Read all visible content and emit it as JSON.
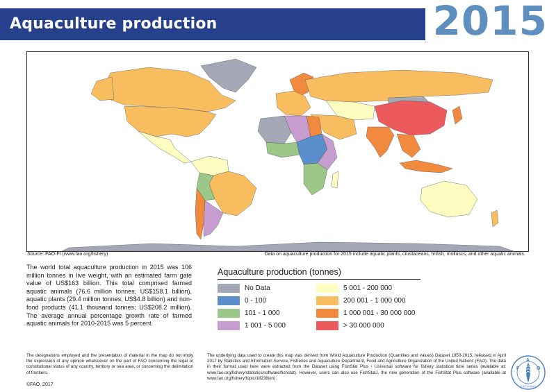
{
  "header": {
    "title": "Aquaculture production",
    "year": "2015"
  },
  "map": {
    "source_label": "Source:",
    "source_text": "FAO-FI (www.fao.org/fishery)",
    "note": "Data on aquaculture production for 2015 include aquatic plants, crustaceans, finfish, molluscs, and other aquatic animals."
  },
  "summary": "The world total aquaculture production in 2015 was 106 million tonnes in live weight, with an estimated farm gate value of US$163 billion. This total comprised farmed aquatic animals (76.6 million tonnes, US$158.1 billion), aquatic plants (29.4 million tonnes; US$4.8 billion) and non-food products (41.1 thousand tonnes; US$208.2 million). The average annual percentage growth rate of farmed aquatic animals for 2010-2015 was 5 percent.",
  "legend": {
    "title": "Aquaculture production (tonnes)",
    "items": [
      {
        "label": "No Data",
        "color": "#a3a7b6"
      },
      {
        "label": "5 001 - 200 000",
        "color": "#fdfcc1"
      },
      {
        "label": "0 - 100",
        "color": "#5a8fcc"
      },
      {
        "label": "200 001 - 1 000 000",
        "color": "#f8bd5f"
      },
      {
        "label": "101 - 1 000",
        "color": "#9bc888"
      },
      {
        "label": "1 000 001 - 30 000 000",
        "color": "#f1893e"
      },
      {
        "label": "1 001 - 5 000",
        "color": "#c79dd0"
      },
      {
        "label": "> 30 000 000",
        "color": "#ec5a5e"
      }
    ]
  },
  "disclaimer": "The designations employed and the presentation of material in the map do not imply the expression of any opinion whatsoever on the part of FAO concerning the legal or constitutional status of any country, territory or sea area, or concerning the delimitation of frontiers.",
  "data_source": "The underlying data used to create this map was derived from World Aquaculture Production (Quantities and values) Dataset 1950-2015, released in April 2017 by Statistics and Information Service, Fisheries and Aquaculture Department, Food and Agriculture Organization of the United Nations (FAO). The data in their format used here were extracted from the Dataset using FishStat Plus - Universal software for fishery statistical time series (available at: www.fao.org/fishery/statistics/software/fishstat). However, users can also use FishStatJ, the new generation of the FishStat Plus software (available at www.fao.org/fishery/topic/18238/en).",
  "copyright": "©FAO, 2017",
  "logo": {
    "letters": "FAO",
    "motto": "FIAT PANIS"
  }
}
